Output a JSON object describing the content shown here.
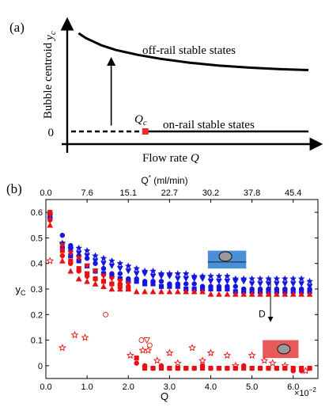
{
  "chart_data": [
    {
      "panel_label": "(a)",
      "type": "line",
      "schematic": true,
      "x_axis_label": "Flow rate",
      "x_axis_symbol": "Q",
      "y_axis_label": "Bubble centroid",
      "y_axis_symbol": "y",
      "y_axis_symbol_sub": "c",
      "y_zero_label": "0",
      "critical_label": "Q",
      "critical_label_sub": "c",
      "off_rail_label": "off-rail stable states",
      "on_rail_label": "on-rail stable states",
      "series": [
        {
          "x": [
            0.0,
            0.5
          ],
          "y": [
            0.0,
            0.0
          ],
          "style": "dashed"
        },
        {
          "x": [
            0.5,
            1.6
          ],
          "y": [
            0.0,
            0.0
          ],
          "style": "solid"
        },
        {
          "x": [
            0.05,
            0.1,
            0.2,
            0.3,
            0.45,
            0.6,
            0.8,
            1.0,
            1.2,
            1.4,
            1.6
          ],
          "y": [
            1.0,
            0.95,
            0.88,
            0.83,
            0.78,
            0.74,
            0.7,
            0.67,
            0.65,
            0.635,
            0.625
          ],
          "style": "solid"
        }
      ],
      "critical_point": {
        "x": 0.5,
        "y": 0.0,
        "color": "#e83030"
      },
      "arrow": {
        "x": 0.27,
        "y_from": 0.06,
        "y_to": 0.74
      }
    },
    {
      "panel_label": "(b)",
      "type": "scatter",
      "xlabel": "Q",
      "ylabel": "y",
      "ylabel_sub": "C",
      "top_xlabel": "Q",
      "top_xlabel_sup": "*",
      "top_xlabel_unit": "(ml/min)",
      "xlim": [
        0.0,
        0.066
      ],
      "ylim": [
        -0.05,
        0.65
      ],
      "xticks": [
        0.0,
        0.01,
        0.02,
        0.03,
        0.04,
        0.05,
        0.06
      ],
      "xtick_labels": [
        "0.0",
        "1.0",
        "2.0",
        "3.0",
        "4.0",
        "5.0",
        "6.0"
      ],
      "x_multiplier": "×10",
      "x_multiplier_exp": "−2",
      "yticks": [
        0.0,
        0.1,
        0.2,
        0.3,
        0.4,
        0.5,
        0.6
      ],
      "ytick_labels": [
        "0",
        "0.1",
        "0.2",
        "0.3",
        "0.4",
        "0.5",
        "0.6"
      ],
      "top_xticks": [
        0.0,
        7.6,
        15.1,
        22.7,
        30.2,
        37.8,
        45.4
      ],
      "top_xtick_labels": [
        "0.0",
        "7.6",
        "15.1",
        "22.7",
        "30.2",
        "37.8",
        "45.4"
      ],
      "top_xticks_q": [
        0.0,
        0.01,
        0.02,
        0.03,
        0.04,
        0.05,
        0.06
      ],
      "annotation_label": "D",
      "annotation_arrow": {
        "x": 0.0545,
        "y_from": 0.34,
        "y_to": 0.175
      },
      "inset_blue": {
        "color": "#4a90d9",
        "x": [
          0.0393,
          0.0486
        ],
        "y": [
          0.38,
          0.45
        ]
      },
      "inset_red": {
        "color": "#e85a5a",
        "x": [
          0.0526,
          0.0613
        ],
        "y": [
          0.03,
          0.1
        ]
      },
      "series": [
        {
          "marker": "star",
          "color": "#1515e0",
          "filled": true,
          "x": [
            0.001,
            0.004,
            0.006,
            0.008,
            0.01,
            0.012,
            0.014,
            0.016,
            0.018,
            0.02,
            0.022,
            0.024,
            0.026,
            0.028,
            0.03,
            0.032,
            0.034,
            0.036,
            0.038,
            0.04,
            0.042,
            0.044,
            0.046,
            0.048,
            0.05,
            0.052,
            0.054,
            0.056,
            0.058,
            0.06,
            0.062,
            0.064
          ],
          "y": [
            0.59,
            0.48,
            0.46,
            0.46,
            0.45,
            0.43,
            0.42,
            0.41,
            0.4,
            0.39,
            0.38,
            0.37,
            0.37,
            0.36,
            0.36,
            0.36,
            0.36,
            0.35,
            0.35,
            0.35,
            0.35,
            0.35,
            0.34,
            0.34,
            0.34,
            0.34,
            0.34,
            0.34,
            0.34,
            0.34,
            0.34,
            0.33
          ]
        },
        {
          "marker": "triangle-down",
          "color": "#1515e0",
          "filled": true,
          "x": [
            0.001,
            0.004,
            0.006,
            0.008,
            0.01,
            0.012,
            0.014,
            0.016,
            0.018,
            0.02,
            0.022,
            0.024,
            0.026,
            0.028,
            0.03,
            0.032,
            0.034,
            0.036,
            0.038,
            0.04,
            0.042,
            0.044,
            0.046,
            0.048,
            0.05,
            0.052,
            0.054,
            0.056,
            0.058,
            0.06,
            0.062,
            0.064
          ],
          "y": [
            0.57,
            0.47,
            0.45,
            0.44,
            0.43,
            0.41,
            0.4,
            0.39,
            0.38,
            0.37,
            0.36,
            0.36,
            0.35,
            0.35,
            0.35,
            0.34,
            0.34,
            0.34,
            0.34,
            0.33,
            0.33,
            0.33,
            0.33,
            0.33,
            0.32,
            0.32,
            0.32,
            0.32,
            0.32,
            0.32,
            0.32,
            0.31
          ]
        },
        {
          "marker": "circle",
          "color": "#1515e0",
          "filled": true,
          "x": [
            0.001,
            0.004,
            0.006,
            0.008,
            0.01,
            0.012,
            0.014,
            0.016,
            0.018,
            0.02,
            0.022,
            0.024,
            0.026,
            0.028,
            0.03,
            0.032,
            0.034,
            0.036,
            0.038,
            0.04,
            0.042,
            0.044,
            0.046,
            0.048,
            0.05,
            0.052,
            0.054,
            0.056,
            0.058,
            0.06,
            0.062,
            0.064
          ],
          "y": [
            0.59,
            0.51,
            0.47,
            0.43,
            0.42,
            0.4,
            0.38,
            0.36,
            0.36,
            0.34,
            0.34,
            0.33,
            0.33,
            0.33,
            0.32,
            0.32,
            0.32,
            0.32,
            0.31,
            0.31,
            0.31,
            0.31,
            0.31,
            0.3,
            0.3,
            0.3,
            0.3,
            0.3,
            0.3,
            0.3,
            0.3,
            0.3
          ]
        },
        {
          "marker": "square",
          "color": "#1515e0",
          "filled": true,
          "x": [
            0.001,
            0.004,
            0.006,
            0.008,
            0.01,
            0.012,
            0.014,
            0.016,
            0.018,
            0.02,
            0.022,
            0.024,
            0.026,
            0.028,
            0.03,
            0.032,
            0.034,
            0.036,
            0.038,
            0.04,
            0.042,
            0.044,
            0.046,
            0.048,
            0.05,
            0.052,
            0.054,
            0.056,
            0.058,
            0.06,
            0.062,
            0.064
          ],
          "y": [
            0.58,
            0.46,
            0.43,
            0.41,
            0.39,
            0.37,
            0.36,
            0.35,
            0.34,
            0.33,
            0.33,
            0.32,
            0.32,
            0.31,
            0.31,
            0.31,
            0.3,
            0.3,
            0.3,
            0.3,
            0.3,
            0.3,
            0.29,
            0.29,
            0.29,
            0.29,
            0.29,
            0.29,
            0.29,
            0.29,
            0.29,
            0.29
          ]
        },
        {
          "marker": "triangle-up",
          "color": "#e81010",
          "filled": true,
          "x": [
            0.001,
            0.004,
            0.006,
            0.008,
            0.01,
            0.012,
            0.014,
            0.016,
            0.018,
            0.02,
            0.022,
            0.024,
            0.026,
            0.028,
            0.03,
            0.032,
            0.034,
            0.036,
            0.038,
            0.04,
            0.042,
            0.044,
            0.046,
            0.048,
            0.05,
            0.052,
            0.054,
            0.056,
            0.058,
            0.06,
            0.062,
            0.064
          ],
          "y": [
            0.55,
            0.41,
            0.37,
            0.34,
            0.33,
            0.32,
            0.31,
            0.3,
            0.3,
            0.3,
            0.29,
            0.29,
            0.29,
            0.29,
            0.29,
            0.29,
            0.29,
            0.29,
            0.29,
            0.28,
            0.28,
            0.28,
            0.28,
            0.28,
            0.28,
            0.28,
            0.28,
            0.28,
            0.28,
            0.28,
            0.28,
            0.28
          ]
        },
        {
          "marker": "triangle-down",
          "color": "#e81010",
          "filled": true,
          "x": [
            0.001,
            0.004,
            0.006,
            0.008,
            0.01,
            0.012,
            0.014,
            0.016,
            0.018,
            0.02
          ],
          "y": [
            0.59,
            0.47,
            0.44,
            0.42,
            0.39,
            0.37,
            0.35,
            0.34,
            0.33,
            0.32
          ]
        },
        {
          "marker": "circle",
          "color": "#e81010",
          "filled": true,
          "x": [
            0.001,
            0.004,
            0.006,
            0.008,
            0.01,
            0.012,
            0.014,
            0.016,
            0.018,
            0.02,
            0.022,
            0.024,
            0.026,
            0.028,
            0.03,
            0.032,
            0.034,
            0.036,
            0.038,
            0.04,
            0.042,
            0.044,
            0.046,
            0.048,
            0.05,
            0.052,
            0.054,
            0.056,
            0.058,
            0.06,
            0.062,
            0.064
          ],
          "y": [
            0.57,
            0.43,
            0.4,
            0.37,
            0.35,
            0.34,
            0.33,
            0.32,
            0.32,
            0.31,
            0.01,
            0.0,
            -0.01,
            0.0,
            -0.01,
            -0.01,
            -0.01,
            -0.01,
            0.0,
            -0.01,
            -0.01,
            -0.01,
            -0.01,
            0.0,
            -0.01,
            -0.01,
            -0.01,
            -0.01,
            -0.01,
            -0.02,
            -0.02,
            -0.01
          ]
        },
        {
          "marker": "square",
          "color": "#e81010",
          "filled": true,
          "x": [
            0.001,
            0.004,
            0.006,
            0.008,
            0.01,
            0.012,
            0.014,
            0.016,
            0.018,
            0.02,
            0.022,
            0.024,
            0.026,
            0.028,
            0.03,
            0.032,
            0.034,
            0.036,
            0.038,
            0.04,
            0.042,
            0.044,
            0.046,
            0.048,
            0.05,
            0.052,
            0.054,
            0.056,
            0.058,
            0.06,
            0.062,
            0.064
          ],
          "y": [
            0.6,
            0.45,
            0.41,
            0.38,
            0.36,
            0.34,
            0.33,
            0.32,
            0.31,
            0.3,
            0.03,
            -0.01,
            -0.01,
            -0.01,
            -0.01,
            -0.01,
            -0.01,
            -0.01,
            -0.01,
            -0.01,
            -0.01,
            -0.01,
            -0.01,
            -0.01,
            -0.01,
            -0.01,
            -0.01,
            -0.01,
            -0.01,
            -0.01,
            -0.01,
            -0.01
          ]
        },
        {
          "marker": "star",
          "color": "#e81010",
          "filled": false,
          "x": [
            0.001,
            0.004,
            0.007,
            0.0095,
            0.0205,
            0.0235,
            0.0248,
            0.027,
            0.03,
            0.032,
            0.0355,
            0.038,
            0.04,
            0.044,
            0.046,
            0.05,
            0.053,
            0.055,
            0.058,
            0.063
          ],
          "y": [
            0.41,
            0.07,
            0.12,
            0.11,
            0.04,
            0.06,
            0.06,
            0.02,
            0.05,
            0.01,
            0.07,
            0.02,
            0.05,
            0.04,
            0.0,
            0.04,
            0.02,
            0.01,
            0.0,
            -0.02
          ]
        },
        {
          "marker": "circle",
          "color": "#e81010",
          "filled": false,
          "x": [
            0.0145,
            0.0232,
            0.0252
          ],
          "y": [
            0.2,
            0.1,
            0.08
          ]
        },
        {
          "marker": "triangle-down",
          "color": "#e81010",
          "filled": false,
          "x": [
            0.0245
          ],
          "y": [
            0.1
          ]
        }
      ]
    }
  ]
}
